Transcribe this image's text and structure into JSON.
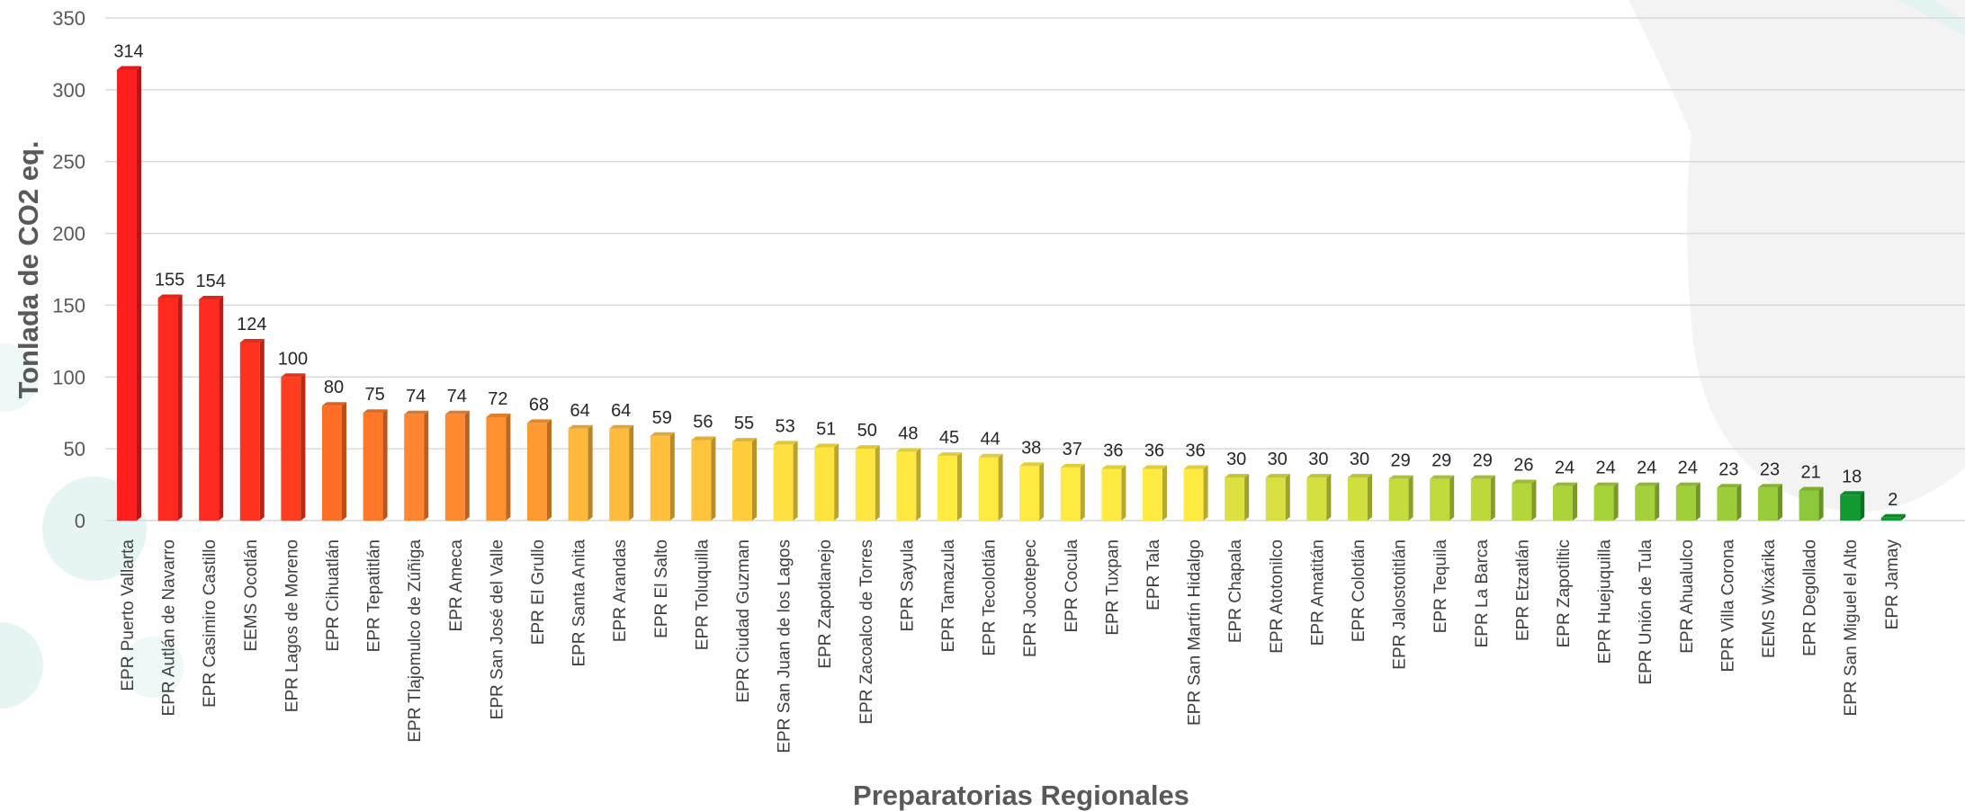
{
  "chart_data": {
    "type": "bar",
    "title": "",
    "xlabel": "Preparatorias Regionales",
    "ylabel": "Tonlada de CO2 eq.",
    "ylim": [
      0,
      350
    ],
    "yticks": [
      0,
      50,
      100,
      150,
      200,
      250,
      300,
      350
    ],
    "grid": true,
    "categories": [
      "EPR Puerto Vallarta",
      "EPR Autlán de Navarro",
      "EPR Casimiro Castillo",
      "EEMS Ocotlán",
      "EPR Lagos de Moreno",
      "EPR Cihuatlán",
      "EPR Tepatitlán",
      "EPR Tlajomulco de Zúñiga",
      "EPR Ameca",
      "EPR San José del Valle",
      "EPR El Grullo",
      "EPR Santa Anita",
      "EPR Arandas",
      "EPR El Salto",
      "EPR Toluquilla",
      "EPR Ciudad Guzman",
      "EPR San Juan de los Lagos",
      "EPR Zapotlanejo",
      "EPR Zacoalco de Torres",
      "EPR Sayula",
      "EPR Tamazula",
      "EPR Tecolotlán",
      "EPR Jocotepec",
      "EPR Cocula",
      "EPR Tuxpan",
      "EPR Tala",
      "EPR San Martín Hidalgo",
      "EPR Chapala",
      "EPR Atotonilco",
      "EPR Amatitán",
      "EPR Colotlán",
      "EPR Jalostotitlán",
      "EPR Tequila",
      "EPR La Barca",
      "EPR Etzatlán",
      "EPR Zapotiltic",
      "EPR Huejuquilla",
      "EPR Unión de Tula",
      "EPR Ahualulco",
      "EPR Villa Corona",
      "EEMS Wixárika",
      "EPR Degollado",
      "EPR San Miguel el Alto",
      "EPR Jamay"
    ],
    "values": [
      314,
      155,
      154,
      124,
      100,
      80,
      75,
      74,
      74,
      72,
      68,
      64,
      64,
      59,
      56,
      55,
      53,
      51,
      50,
      48,
      45,
      44,
      38,
      37,
      36,
      36,
      36,
      30,
      30,
      30,
      30,
      29,
      29,
      29,
      26,
      24,
      24,
      24,
      24,
      23,
      23,
      21,
      18,
      2
    ],
    "data_labels": [
      "314",
      "155",
      "154",
      "124",
      "100",
      "80",
      "75",
      "74",
      "74",
      "72",
      "68",
      "64",
      "64",
      "59",
      "56",
      "55",
      "53",
      "51",
      "50",
      "48",
      "45",
      "44",
      "38",
      "37",
      "36",
      "36",
      "36",
      "30",
      "30",
      "30",
      "30",
      "29",
      "29",
      "29",
      "26",
      "24",
      "24",
      "24",
      "24",
      "23",
      "23",
      "21",
      "18",
      "2"
    ],
    "bar_colors": [
      "#ff1f1f",
      "#ff2a1f",
      "#ff2a1f",
      "#ff3320",
      "#ff3d1f",
      "#ff6e26",
      "#ff7828",
      "#ff8530",
      "#ff8a30",
      "#ff9030",
      "#ff9a32",
      "#ffb83c",
      "#ffbc3c",
      "#ffc03c",
      "#ffc43c",
      "#ffcc3c",
      "#ffe040",
      "#ffe440",
      "#ffe640",
      "#ffe840",
      "#ffea42",
      "#ffea42",
      "#ffea42",
      "#ffea42",
      "#ffea42",
      "#ffea42",
      "#ffea42",
      "#dce040",
      "#d8e040",
      "#d4e040",
      "#d0df3e",
      "#c6dc3c",
      "#c0da3c",
      "#bcd83a",
      "#b4d63a",
      "#acd33a",
      "#a8d23a",
      "#a4d03a",
      "#a0cf3a",
      "#9ccd3a",
      "#98cc3a",
      "#8cc83a",
      "#109a30",
      "#109a30"
    ]
  }
}
